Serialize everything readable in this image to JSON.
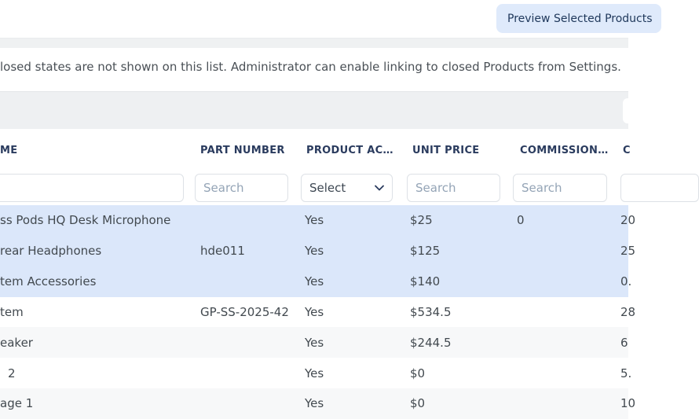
{
  "page": {
    "preview_button_label": "Preview Selected Products",
    "info_text": "losed states are not shown on this list. Administrator can enable linking to closed Products from Settings."
  },
  "colors": {
    "selected_row_bg": "#dbe7fa",
    "zebra_row_bg": "#f7f8f9",
    "toolbar_bg": "#eef0f2",
    "header_text": "#2a3b5e",
    "button_bg": "#dfeafb",
    "button_text": "#20395c",
    "placeholder_text": "#94a4b6"
  },
  "icons": {
    "select_chevron": "chevron-down"
  },
  "table": {
    "headers": {
      "name": "ME",
      "part_number": "PART NUMBER",
      "product_active": "PRODUCT AC…",
      "unit_price": "UNIT PRICE",
      "commission": "COMMISSION…",
      "last": "C"
    },
    "filters": {
      "name_placeholder": "",
      "part_number_placeholder": "Search",
      "product_active_value": "Select",
      "unit_price_placeholder": "Search",
      "commission_placeholder": "Search",
      "last_placeholder": ""
    },
    "rows": [
      {
        "name": "ss Pods HQ Desk Microphone",
        "part_number": "",
        "product_active": "Yes",
        "unit_price": "$25",
        "commission": "0",
        "last": "20",
        "selected": true,
        "indent": 0
      },
      {
        "name": "rear Headphones",
        "part_number": "hde011",
        "product_active": "Yes",
        "unit_price": "$125",
        "commission": "",
        "last": "25",
        "selected": true,
        "indent": 0
      },
      {
        "name": "tem Accessories",
        "part_number": "",
        "product_active": "Yes",
        "unit_price": "$140",
        "commission": "",
        "last": "0.",
        "selected": true,
        "indent": 0
      },
      {
        "name": "tem",
        "part_number": "GP-SS-2025-42",
        "product_active": "Yes",
        "unit_price": "$534.5",
        "commission": "",
        "last": "28",
        "selected": false,
        "indent": 0
      },
      {
        "name": "eaker",
        "part_number": "",
        "product_active": "Yes",
        "unit_price": "$244.5",
        "commission": "",
        "last": "6",
        "selected": false,
        "indent": 0
      },
      {
        "name": "2",
        "part_number": "",
        "product_active": "Yes",
        "unit_price": "$0",
        "commission": "",
        "last": "5.",
        "selected": false,
        "indent": 10
      },
      {
        "name": "age 1",
        "part_number": "",
        "product_active": "Yes",
        "unit_price": "$0",
        "commission": "",
        "last": "10",
        "selected": false,
        "indent": 0
      }
    ]
  }
}
